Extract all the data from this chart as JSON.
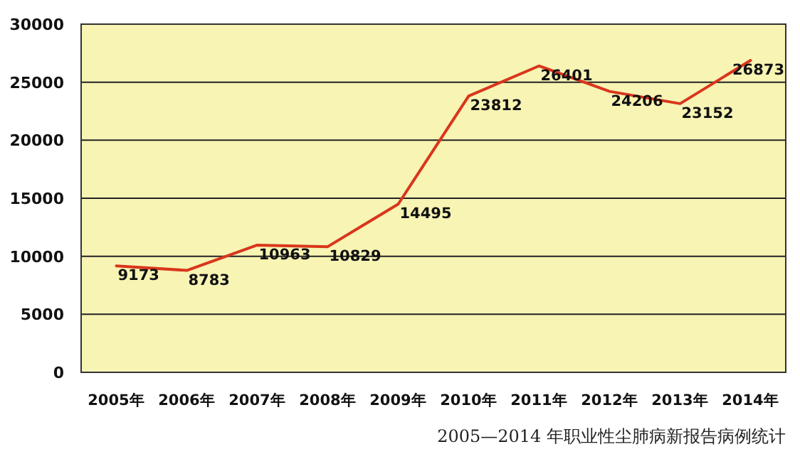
{
  "chart_data": {
    "type": "line",
    "categories": [
      "2005年",
      "2006年",
      "2007年",
      "2008年",
      "2009年",
      "2010年",
      "2011年",
      "2012年",
      "2013年",
      "2014年"
    ],
    "values": [
      9173,
      8783,
      10963,
      10829,
      14495,
      23812,
      26401,
      24206,
      23152,
      26873
    ],
    "color": "#d9361c",
    "ylim": [
      0,
      30000
    ],
    "yticks": [
      0,
      5000,
      10000,
      15000,
      20000,
      25000,
      30000
    ],
    "grid": "y",
    "data_labels": true,
    "annotations": [
      "2005—2014 年职业性尘肺病新报告病例统计"
    ]
  }
}
